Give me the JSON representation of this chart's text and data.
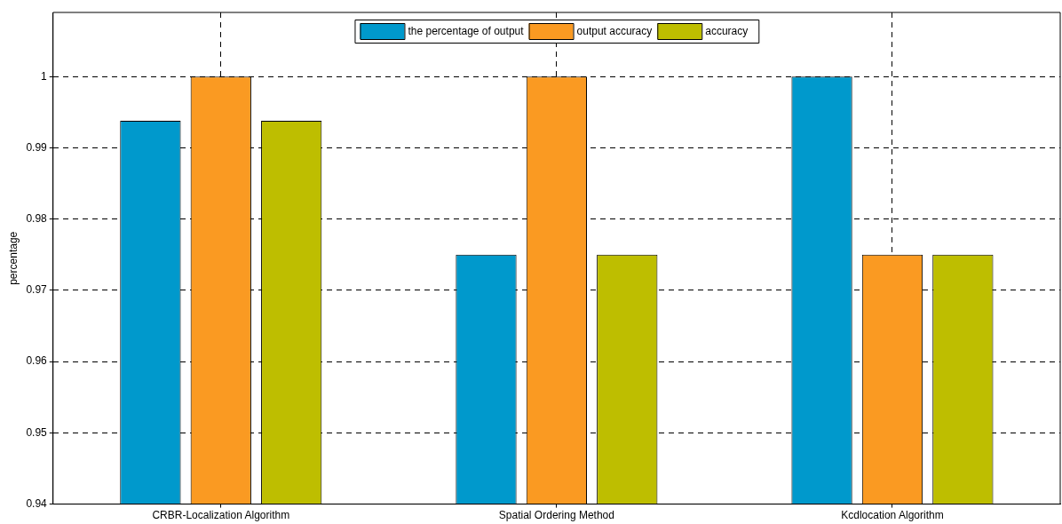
{
  "chart_data": {
    "type": "bar",
    "ylabel": "percentage",
    "categories": [
      "CRBR-Localization Algorithm",
      "Spatial Ordering Method",
      "Kcdlocation Algorithm"
    ],
    "series": [
      {
        "name": "the percentage of output",
        "color": "#0099cc",
        "values": [
          0.9938,
          0.975,
          1.0
        ]
      },
      {
        "name": "output accuracy",
        "color": "#fa9a22",
        "values": [
          1.0,
          1.0,
          0.975
        ]
      },
      {
        "name": "accuracy",
        "color": "#bebe00",
        "values": [
          0.9938,
          0.975,
          0.975
        ]
      }
    ],
    "ylim": [
      0.94,
      1.009
    ],
    "yticks": [
      0.94,
      0.95,
      0.96,
      0.97,
      0.98,
      0.99,
      1
    ],
    "grid": true,
    "legend": "top"
  }
}
